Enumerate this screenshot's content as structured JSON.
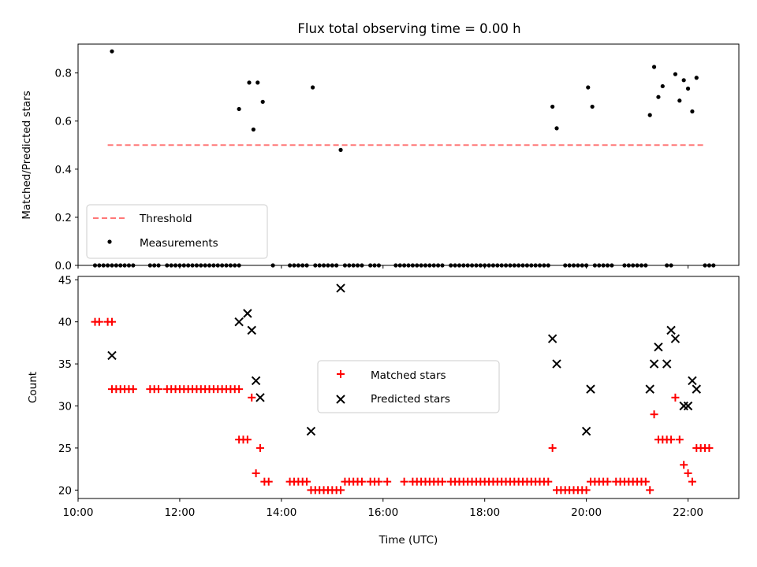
{
  "title": "Flux total observing time = 0.00 h",
  "colors": {
    "threshold": "#ff7777",
    "matched": "#ff0000",
    "predicted": "#000000",
    "measurement": "#000000"
  },
  "chart_data": [
    {
      "type": "scatter",
      "ylabel": "Matched/Predicted stars",
      "xlim": [
        "10:00",
        "23:00"
      ],
      "ylim": [
        0,
        0.92
      ],
      "yticks": [
        "0.0",
        "0.2",
        "0.4",
        "0.6",
        "0.8"
      ],
      "grid": false,
      "legend_position": "lower-left",
      "threshold": {
        "name": "Threshold",
        "value": 0.5,
        "x_range": [
          "10:35",
          "22:20"
        ],
        "style": "dashed"
      },
      "series": [
        {
          "name": "Measurements",
          "points": [
            [
              "10:40",
              0.89
            ],
            [
              "13:10",
              0.65
            ],
            [
              "13:22",
              0.76
            ],
            [
              "13:27",
              0.565
            ],
            [
              "13:32",
              0.76
            ],
            [
              "13:38",
              0.68
            ],
            [
              "14:37",
              0.74
            ],
            [
              "15:10",
              0.48
            ],
            [
              "19:20",
              0.66
            ],
            [
              "19:25",
              0.57
            ],
            [
              "20:02",
              0.74
            ],
            [
              "20:07",
              0.66
            ],
            [
              "21:15",
              0.625
            ],
            [
              "21:20",
              0.825
            ],
            [
              "21:25",
              0.7
            ],
            [
              "21:30",
              0.745
            ],
            [
              "21:45",
              0.795
            ],
            [
              "21:50",
              0.685
            ],
            [
              "21:55",
              0.77
            ],
            [
              "22:00",
              0.735
            ],
            [
              "22:05",
              0.64
            ],
            [
              "22:10",
              0.78
            ]
          ],
          "zero_times": [
            "10:20",
            "10:25",
            "10:30",
            "10:35",
            "10:40",
            "10:45",
            "10:50",
            "10:55",
            "11:00",
            "11:05",
            "11:25",
            "11:30",
            "11:35",
            "11:45",
            "11:50",
            "11:55",
            "12:00",
            "12:05",
            "12:10",
            "12:15",
            "12:20",
            "12:25",
            "12:30",
            "12:35",
            "12:40",
            "12:45",
            "12:50",
            "12:55",
            "13:00",
            "13:05",
            "13:10",
            "13:50",
            "14:10",
            "14:15",
            "14:20",
            "14:25",
            "14:30",
            "14:40",
            "14:45",
            "14:50",
            "14:55",
            "15:00",
            "15:05",
            "15:15",
            "15:20",
            "15:25",
            "15:30",
            "15:35",
            "15:45",
            "15:50",
            "15:55",
            "16:15",
            "16:20",
            "16:25",
            "16:30",
            "16:35",
            "16:40",
            "16:45",
            "16:50",
            "16:55",
            "17:00",
            "17:05",
            "17:10",
            "17:20",
            "17:25",
            "17:30",
            "17:35",
            "17:40",
            "17:45",
            "17:50",
            "17:55",
            "18:00",
            "18:05",
            "18:10",
            "18:15",
            "18:20",
            "18:25",
            "18:30",
            "18:35",
            "18:40",
            "18:45",
            "18:50",
            "18:55",
            "19:00",
            "19:05",
            "19:10",
            "19:15",
            "19:35",
            "19:40",
            "19:45",
            "19:50",
            "19:55",
            "20:00",
            "20:10",
            "20:15",
            "20:20",
            "20:25",
            "20:30",
            "20:45",
            "20:50",
            "20:55",
            "21:00",
            "21:05",
            "21:10",
            "21:35",
            "21:40",
            "22:20",
            "22:25",
            "22:30"
          ]
        }
      ]
    },
    {
      "type": "scatter",
      "xlabel": "Time (UTC)",
      "ylabel": "Count",
      "xlim": [
        "10:00",
        "23:00"
      ],
      "ylim": [
        19,
        45.4
      ],
      "xticks": [
        "10:00",
        "12:00",
        "14:00",
        "16:00",
        "18:00",
        "20:00",
        "22:00"
      ],
      "yticks": [
        "20",
        "25",
        "30",
        "35",
        "40",
        "45"
      ],
      "grid": false,
      "legend_position": "center",
      "series": [
        {
          "name": "Matched stars",
          "marker": "+",
          "points": [
            [
              "10:20",
              40
            ],
            [
              "10:25",
              40
            ],
            [
              "10:35",
              40
            ],
            [
              "10:40",
              40
            ],
            [
              "10:40",
              32
            ],
            [
              "10:45",
              32
            ],
            [
              "10:50",
              32
            ],
            [
              "10:55",
              32
            ],
            [
              "11:00",
              32
            ],
            [
              "11:05",
              32
            ],
            [
              "11:25",
              32
            ],
            [
              "11:30",
              32
            ],
            [
              "11:35",
              32
            ],
            [
              "11:45",
              32
            ],
            [
              "11:50",
              32
            ],
            [
              "11:55",
              32
            ],
            [
              "12:00",
              32
            ],
            [
              "12:05",
              32
            ],
            [
              "12:10",
              32
            ],
            [
              "12:15",
              32
            ],
            [
              "12:20",
              32
            ],
            [
              "12:25",
              32
            ],
            [
              "12:30",
              32
            ],
            [
              "12:35",
              32
            ],
            [
              "12:40",
              32
            ],
            [
              "12:45",
              32
            ],
            [
              "12:50",
              32
            ],
            [
              "12:55",
              32
            ],
            [
              "13:00",
              32
            ],
            [
              "13:05",
              32
            ],
            [
              "13:10",
              32
            ],
            [
              "13:10",
              26
            ],
            [
              "13:15",
              26
            ],
            [
              "13:20",
              26
            ],
            [
              "13:25",
              31
            ],
            [
              "13:30",
              22
            ],
            [
              "13:35",
              25
            ],
            [
              "13:40",
              21
            ],
            [
              "13:45",
              21
            ],
            [
              "14:10",
              21
            ],
            [
              "14:15",
              21
            ],
            [
              "14:20",
              21
            ],
            [
              "14:25",
              21
            ],
            [
              "14:30",
              21
            ],
            [
              "14:35",
              20
            ],
            [
              "14:40",
              20
            ],
            [
              "14:45",
              20
            ],
            [
              "14:50",
              20
            ],
            [
              "14:55",
              20
            ],
            [
              "15:00",
              20
            ],
            [
              "15:05",
              20
            ],
            [
              "15:10",
              20
            ],
            [
              "15:15",
              21
            ],
            [
              "15:20",
              21
            ],
            [
              "15:25",
              21
            ],
            [
              "15:30",
              21
            ],
            [
              "15:35",
              21
            ],
            [
              "15:45",
              21
            ],
            [
              "15:50",
              21
            ],
            [
              "15:55",
              21
            ],
            [
              "16:05",
              21
            ],
            [
              "16:25",
              21
            ],
            [
              "16:35",
              21
            ],
            [
              "16:40",
              21
            ],
            [
              "16:45",
              21
            ],
            [
              "16:50",
              21
            ],
            [
              "16:55",
              21
            ],
            [
              "17:00",
              21
            ],
            [
              "17:05",
              21
            ],
            [
              "17:10",
              21
            ],
            [
              "17:20",
              21
            ],
            [
              "17:25",
              21
            ],
            [
              "17:30",
              21
            ],
            [
              "17:35",
              21
            ],
            [
              "17:40",
              21
            ],
            [
              "17:45",
              21
            ],
            [
              "17:50",
              21
            ],
            [
              "17:55",
              21
            ],
            [
              "18:00",
              21
            ],
            [
              "18:05",
              21
            ],
            [
              "18:10",
              21
            ],
            [
              "18:15",
              21
            ],
            [
              "18:20",
              21
            ],
            [
              "18:25",
              21
            ],
            [
              "18:30",
              21
            ],
            [
              "18:35",
              21
            ],
            [
              "18:40",
              21
            ],
            [
              "18:45",
              21
            ],
            [
              "18:50",
              21
            ],
            [
              "18:55",
              21
            ],
            [
              "19:00",
              21
            ],
            [
              "19:05",
              21
            ],
            [
              "19:10",
              21
            ],
            [
              "19:15",
              21
            ],
            [
              "19:20",
              25
            ],
            [
              "19:25",
              20
            ],
            [
              "19:30",
              20
            ],
            [
              "19:35",
              20
            ],
            [
              "19:40",
              20
            ],
            [
              "19:45",
              20
            ],
            [
              "19:50",
              20
            ],
            [
              "19:55",
              20
            ],
            [
              "20:00",
              20
            ],
            [
              "20:05",
              21
            ],
            [
              "20:10",
              21
            ],
            [
              "20:15",
              21
            ],
            [
              "20:20",
              21
            ],
            [
              "20:25",
              21
            ],
            [
              "20:35",
              21
            ],
            [
              "20:40",
              21
            ],
            [
              "20:45",
              21
            ],
            [
              "20:50",
              21
            ],
            [
              "20:55",
              21
            ],
            [
              "21:00",
              21
            ],
            [
              "21:05",
              21
            ],
            [
              "21:10",
              21
            ],
            [
              "21:15",
              20
            ],
            [
              "21:20",
              29
            ],
            [
              "21:25",
              26
            ],
            [
              "21:30",
              26
            ],
            [
              "21:35",
              26
            ],
            [
              "21:40",
              26
            ],
            [
              "21:45",
              31
            ],
            [
              "21:50",
              26
            ],
            [
              "21:55",
              23
            ],
            [
              "22:00",
              22
            ],
            [
              "22:05",
              21
            ],
            [
              "22:10",
              25
            ],
            [
              "22:15",
              25
            ],
            [
              "22:20",
              25
            ],
            [
              "22:25",
              25
            ]
          ]
        },
        {
          "name": "Predicted stars",
          "marker": "x",
          "points": [
            [
              "10:40",
              36
            ],
            [
              "13:10",
              40
            ],
            [
              "13:20",
              41
            ],
            [
              "13:25",
              39
            ],
            [
              "13:30",
              33
            ],
            [
              "13:35",
              31
            ],
            [
              "14:35",
              27
            ],
            [
              "15:10",
              44
            ],
            [
              "19:20",
              38
            ],
            [
              "19:25",
              35
            ],
            [
              "20:00",
              27
            ],
            [
              "20:05",
              32
            ],
            [
              "21:15",
              32
            ],
            [
              "21:20",
              35
            ],
            [
              "21:25",
              37
            ],
            [
              "21:35",
              35
            ],
            [
              "21:40",
              39
            ],
            [
              "21:45",
              38
            ],
            [
              "21:55",
              30
            ],
            [
              "22:00",
              30
            ],
            [
              "22:05",
              33
            ],
            [
              "22:10",
              32
            ]
          ]
        }
      ]
    }
  ]
}
